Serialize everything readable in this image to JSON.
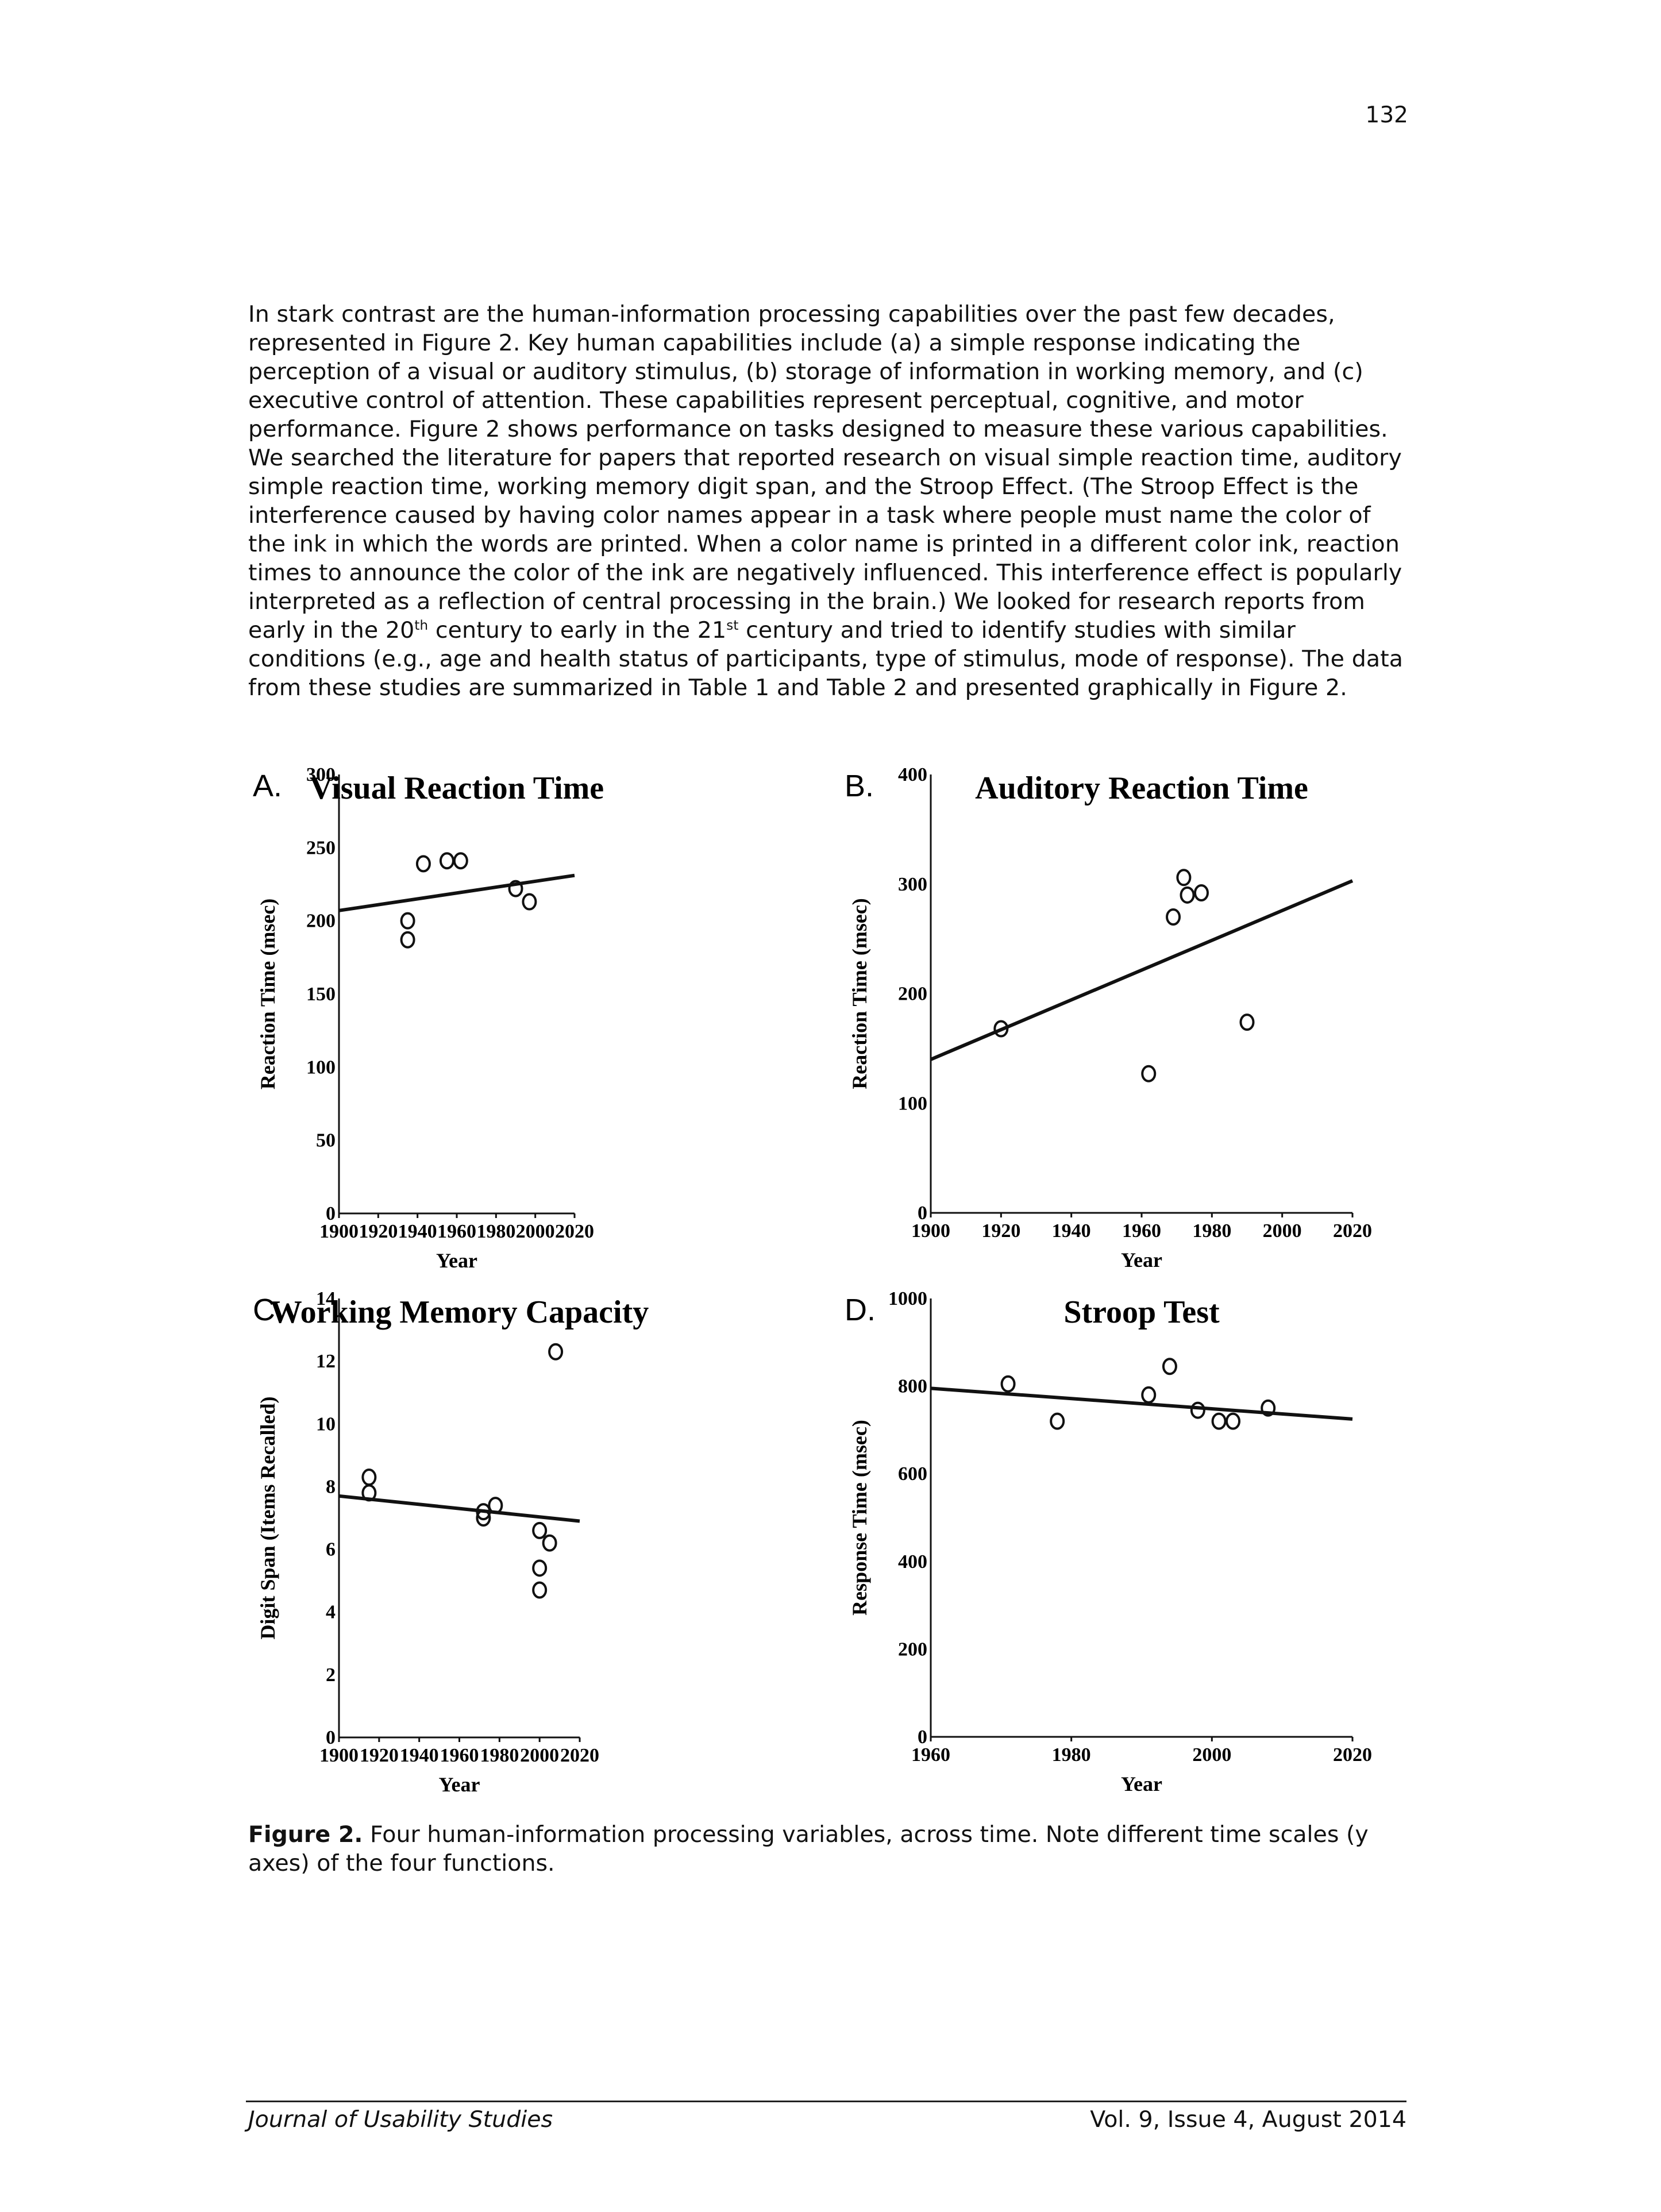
{
  "page_number": "132",
  "body_paragraph": {
    "part1": "In stark contrast are the human-information processing capabilities over the past few decades, represented in Figure 2. Key human capabilities include (a) a simple response indicating the perception of a visual or auditory stimulus, (b) storage of information in working memory, and (c) executive control of attention. These capabilities represent perceptual, cognitive, and motor performance. Figure 2 shows performance on tasks designed to measure these various capabilities. We searched the literature for papers that reported research on visual simple reaction time, auditory simple reaction time, working memory digit span, and the Stroop Effect. (The Stroop Effect is the interference caused by having color names appear in a task where people must name the color of the ink in which the words are printed. When a color name is printed in a different color ink, reaction times to announce the color of the ink are negatively influenced. This interference effect is popularly interpreted as a reflection of central processing in the brain.) We looked for research reports from early in the 20",
    "sup1": "th",
    "part2": " century to early in the 21",
    "sup2": "st",
    "part3": " century and tried to identify studies with similar conditions (e.g., age and health status of participants, type of stimulus, mode of response). The data from these studies are summarized in Table 1 and Table 2 and presented graphically in Figure 2."
  },
  "chart_data": [
    {
      "panel": "A.",
      "type": "scatter",
      "title": "Visual Reaction Time",
      "xlabel": "Year",
      "ylabel": "Reaction Time (msec)",
      "xlim": [
        1900,
        2020
      ],
      "ylim": [
        0,
        300
      ],
      "xticks": [
        1900,
        1920,
        1940,
        1960,
        1980,
        2000,
        2020
      ],
      "yticks": [
        0,
        50,
        100,
        150,
        200,
        250,
        300
      ],
      "points": [
        [
          1935,
          200
        ],
        [
          1935,
          187
        ],
        [
          1943,
          239
        ],
        [
          1955,
          241
        ],
        [
          1962,
          241
        ],
        [
          1990,
          222
        ],
        [
          1997,
          213
        ]
      ],
      "trendline": [
        [
          1900,
          207
        ],
        [
          2020,
          231
        ]
      ]
    },
    {
      "panel": "B.",
      "type": "scatter",
      "title": "Auditory Reaction Time",
      "xlabel": "Year",
      "ylabel": "Reaction Time (msec)",
      "xlim": [
        1900,
        2020
      ],
      "ylim": [
        0,
        400
      ],
      "xticks": [
        1900,
        1920,
        1940,
        1960,
        1980,
        2000,
        2020
      ],
      "yticks": [
        0,
        100,
        200,
        300,
        400
      ],
      "points": [
        [
          1920,
          168
        ],
        [
          1962,
          127
        ],
        [
          1969,
          270
        ],
        [
          1972,
          306
        ],
        [
          1973,
          290
        ],
        [
          1977,
          292
        ],
        [
          1990,
          174
        ]
      ],
      "trendline": [
        [
          1900,
          140
        ],
        [
          2020,
          303
        ]
      ]
    },
    {
      "panel": "C.",
      "type": "scatter",
      "title": "Working Memory Capacity",
      "xlabel": "Year",
      "ylabel": "Digit Span (Items Recalled)",
      "xlim": [
        1900,
        2020
      ],
      "ylim": [
        0,
        14
      ],
      "xticks": [
        1900,
        1920,
        1940,
        1960,
        1980,
        2000,
        2020
      ],
      "yticks": [
        0,
        2,
        4,
        6,
        8,
        10,
        12,
        14
      ],
      "points": [
        [
          1915,
          8.3
        ],
        [
          1915,
          7.8
        ],
        [
          1972,
          7.2
        ],
        [
          1972,
          7.0
        ],
        [
          1978,
          7.4
        ],
        [
          2000,
          6.6
        ],
        [
          2005,
          6.2
        ],
        [
          2000,
          5.4
        ],
        [
          2000,
          4.7
        ],
        [
          2008,
          12.3
        ]
      ],
      "trendline": [
        [
          1900,
          7.7
        ],
        [
          2020,
          6.9
        ]
      ]
    },
    {
      "panel": "D.",
      "type": "scatter",
      "title": "Stroop Test",
      "xlabel": "Year",
      "ylabel": "Response Time (msec)",
      "xlim": [
        1960,
        2020
      ],
      "ylim": [
        0,
        1000
      ],
      "xticks": [
        1960,
        1980,
        2000,
        2020
      ],
      "yticks": [
        0,
        200,
        400,
        600,
        800,
        1000
      ],
      "points": [
        [
          1971,
          805
        ],
        [
          1978,
          720
        ],
        [
          1991,
          780
        ],
        [
          1994,
          845
        ],
        [
          1998,
          745
        ],
        [
          2001,
          720
        ],
        [
          2003,
          720
        ],
        [
          2008,
          750
        ]
      ],
      "trendline": [
        [
          1960,
          795
        ],
        [
          2020,
          725
        ]
      ]
    }
  ],
  "caption": {
    "label": "Figure 2.",
    "text": " Four human-information processing variables, across time. Note different time scales (y axes) of the four functions."
  },
  "footer": {
    "journal": "Journal of Usability Studies",
    "issue": "Vol. 9, Issue 4, August 2014"
  }
}
